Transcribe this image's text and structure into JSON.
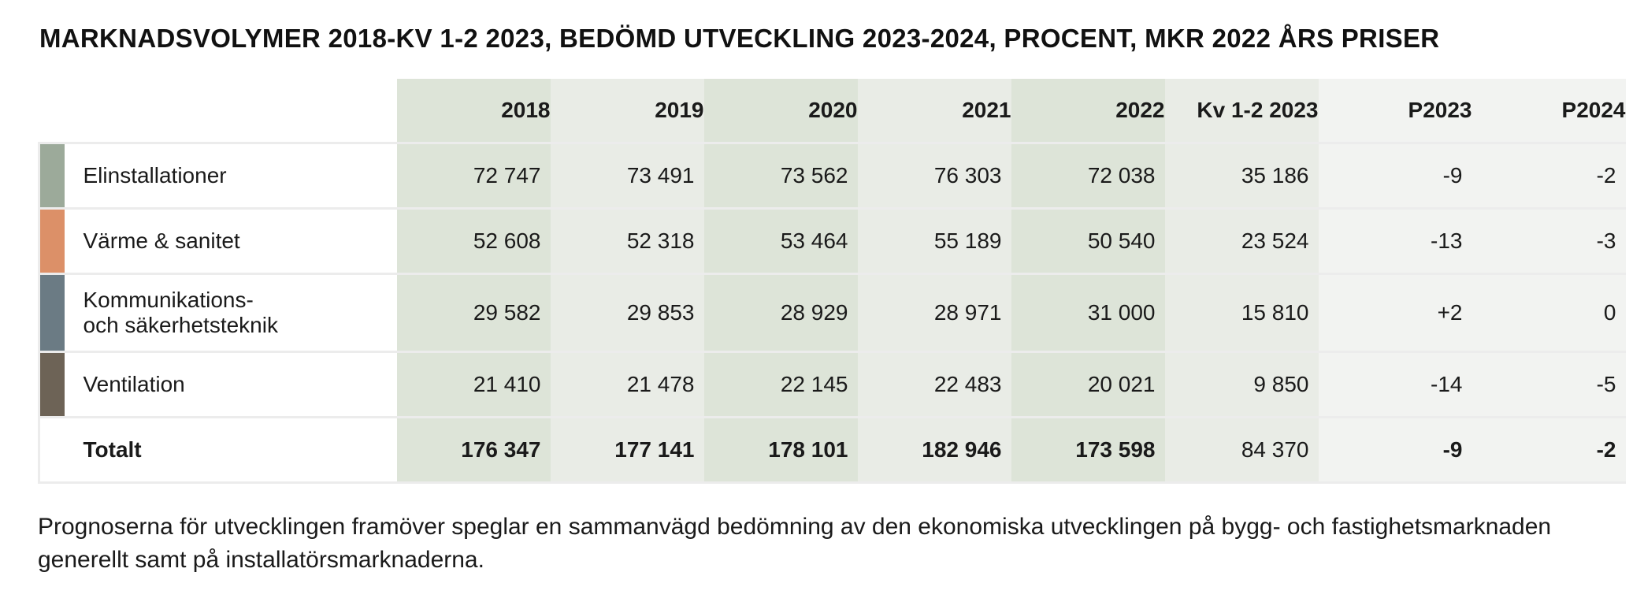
{
  "title": "MARKNADSVOLYMER 2018-KV 1-2 2023, BEDÖMD UTVECKLING 2023-2024, PROCENT, MKR 2022 ÅRS PRISER",
  "columns": [
    "2018",
    "2019",
    "2020",
    "2021",
    "2022",
    "Kv 1-2 2023",
    "P2023",
    "P2024"
  ],
  "rows": [
    {
      "label": "Elinstallationer",
      "color": "#9caa9a",
      "values": [
        "72 747",
        "73 491",
        "73 562",
        "76 303",
        "72 038",
        "35 186",
        "-9",
        "-2"
      ]
    },
    {
      "label": "Värme & sanitet",
      "color": "#dc9068",
      "values": [
        "52 608",
        "52 318",
        "53 464",
        "55 189",
        "50 540",
        "23 524",
        "-13",
        "-3"
      ]
    },
    {
      "label_line1": "Kommunikations-",
      "label_line2": "och säkerhetsteknik",
      "color": "#6b7b84",
      "values": [
        "29 582",
        "29 853",
        "28 929",
        "28 971",
        "31 000",
        "15 810",
        "+2",
        "0"
      ]
    },
    {
      "label": "Ventilation",
      "color": "#6d6356",
      "values": [
        "21 410",
        "21 478",
        "22 145",
        "22 483",
        "20 021",
        "9 850",
        "-14",
        "-5"
      ]
    }
  ],
  "total": {
    "label": "Totalt",
    "values": [
      "176 347",
      "177 141",
      "178 101",
      "182 946",
      "173 598",
      "84 370",
      "-9",
      "-2"
    ]
  },
  "note": "Prognoserna för utvecklingen framöver speglar en sammanvägd bedömning av den ekonomiska utvecklingen på bygg- och fastighetsmarknaden generellt samt på installatörsmarknaderna."
}
